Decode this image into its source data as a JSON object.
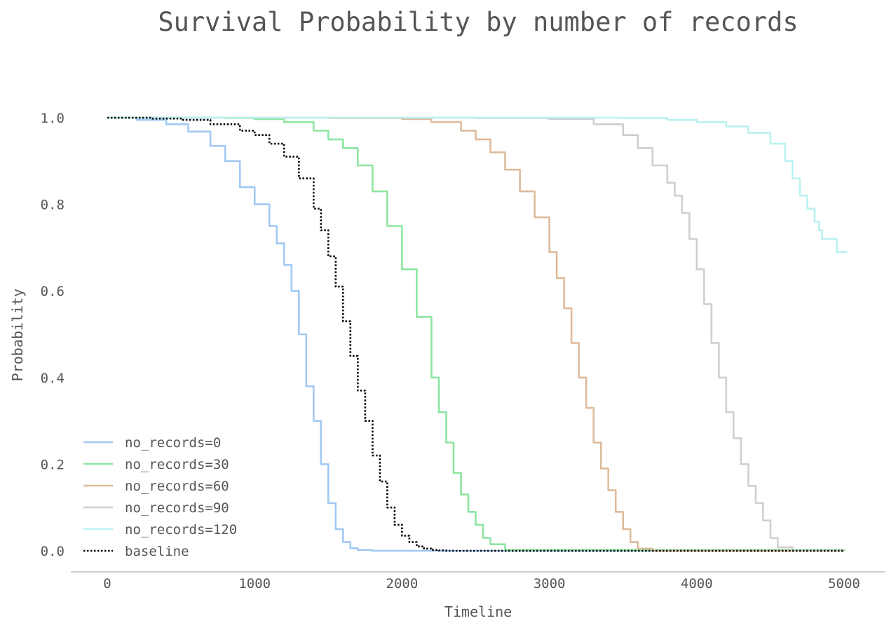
{
  "chart_data": {
    "type": "line",
    "title": "Survival Probability by number of records",
    "xlabel": "Timeline",
    "ylabel": "Probability",
    "xlim": [
      -250,
      5250
    ],
    "ylim": [
      -0.05,
      1.05
    ],
    "xticks": [
      0,
      1000,
      2000,
      3000,
      4000,
      5000
    ],
    "yticks": [
      0.0,
      0.2,
      0.4,
      0.6,
      0.8,
      1.0
    ],
    "ytick_labels": [
      "0.0",
      "0.2",
      "0.4",
      "0.6",
      "0.8",
      "1.0"
    ],
    "grid": false,
    "legend_position": "lower-left",
    "series": [
      {
        "name": "no_records=0",
        "color": "#a1c9f4",
        "style": "solid",
        "x": [
          0,
          200,
          400,
          550,
          700,
          800,
          900,
          1000,
          1100,
          1150,
          1200,
          1250,
          1300,
          1350,
          1400,
          1450,
          1500,
          1550,
          1600,
          1650,
          1700,
          1800,
          5000
        ],
        "y": [
          1.0,
          0.995,
          0.985,
          0.968,
          0.935,
          0.9,
          0.84,
          0.8,
          0.75,
          0.71,
          0.66,
          0.6,
          0.5,
          0.38,
          0.3,
          0.2,
          0.11,
          0.05,
          0.02,
          0.006,
          0.002,
          0.0,
          0.0
        ]
      },
      {
        "name": "no_records=30",
        "color": "#8de5a1",
        "style": "solid",
        "x": [
          0,
          800,
          1000,
          1200,
          1400,
          1500,
          1600,
          1700,
          1800,
          1900,
          2000,
          2100,
          2200,
          2250,
          2300,
          2350,
          2400,
          2450,
          2500,
          2550,
          2600,
          2700,
          5000
        ],
        "y": [
          1.0,
          0.999,
          0.997,
          0.99,
          0.97,
          0.95,
          0.93,
          0.89,
          0.83,
          0.75,
          0.65,
          0.54,
          0.4,
          0.32,
          0.25,
          0.18,
          0.13,
          0.09,
          0.06,
          0.03,
          0.015,
          0.002,
          0.0
        ]
      },
      {
        "name": "no_records=60",
        "color": "#debb9b",
        "style": "solid",
        "x": [
          0,
          1500,
          2000,
          2200,
          2400,
          2500,
          2600,
          2700,
          2800,
          2900,
          3000,
          3050,
          3100,
          3150,
          3200,
          3250,
          3300,
          3350,
          3400,
          3450,
          3500,
          3550,
          3600,
          3700,
          5000
        ],
        "y": [
          1.0,
          0.999,
          0.997,
          0.99,
          0.97,
          0.95,
          0.92,
          0.88,
          0.83,
          0.77,
          0.69,
          0.63,
          0.56,
          0.48,
          0.4,
          0.33,
          0.25,
          0.19,
          0.14,
          0.09,
          0.05,
          0.02,
          0.005,
          0.0,
          0.0
        ]
      },
      {
        "name": "no_records=90",
        "color": "#cfcfcf",
        "style": "solid",
        "x": [
          0,
          2500,
          3000,
          3300,
          3500,
          3600,
          3700,
          3800,
          3850,
          3900,
          3950,
          4000,
          4050,
          4100,
          4150,
          4200,
          4250,
          4300,
          4350,
          4400,
          4450,
          4500,
          4550,
          4650,
          5000
        ],
        "y": [
          1.0,
          0.999,
          0.997,
          0.985,
          0.96,
          0.93,
          0.89,
          0.85,
          0.82,
          0.78,
          0.72,
          0.65,
          0.57,
          0.48,
          0.4,
          0.32,
          0.26,
          0.2,
          0.15,
          0.11,
          0.07,
          0.03,
          0.008,
          0.0,
          0.0
        ]
      },
      {
        "name": "no_records=120",
        "color": "#b9f2f0",
        "style": "solid",
        "x": [
          0,
          3500,
          3800,
          4000,
          4200,
          4350,
          4500,
          4600,
          4650,
          4700,
          4750,
          4800,
          4830,
          4850,
          4900,
          4940,
          4950,
          5020
        ],
        "y": [
          1.0,
          0.999,
          0.995,
          0.99,
          0.98,
          0.965,
          0.94,
          0.9,
          0.86,
          0.82,
          0.79,
          0.76,
          0.74,
          0.72,
          0.72,
          0.72,
          0.69,
          0.69
        ]
      },
      {
        "name": "baseline",
        "color": "#000000",
        "style": "dotted",
        "x": [
          0,
          300,
          500,
          700,
          900,
          1000,
          1100,
          1200,
          1300,
          1400,
          1450,
          1500,
          1550,
          1600,
          1650,
          1700,
          1750,
          1800,
          1850,
          1900,
          1950,
          2000,
          2050,
          2100,
          2150,
          2200,
          2250,
          2300,
          5000
        ],
        "y": [
          1.0,
          0.998,
          0.995,
          0.985,
          0.97,
          0.96,
          0.94,
          0.91,
          0.86,
          0.79,
          0.74,
          0.68,
          0.61,
          0.53,
          0.45,
          0.37,
          0.3,
          0.22,
          0.16,
          0.1,
          0.06,
          0.035,
          0.02,
          0.01,
          0.005,
          0.002,
          0.001,
          0.0,
          0.0
        ]
      }
    ]
  }
}
